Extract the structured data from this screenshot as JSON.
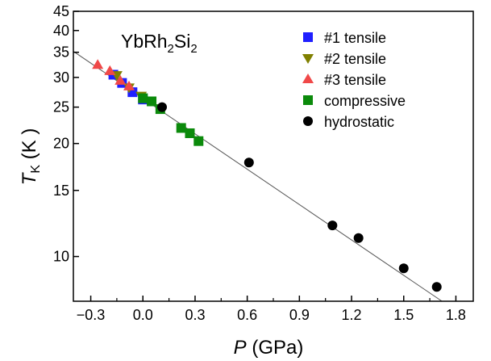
{
  "chart_data": {
    "type": "scatter",
    "annotation": {
      "base": "YbRh",
      "sub1": "2",
      "mid": "Si",
      "sub2": "2"
    },
    "xlabel": {
      "var": "P",
      "unit": " (GPa)"
    },
    "ylabel": {
      "var": "T",
      "sub": "K",
      "unit": " (K )"
    },
    "xlim": [
      -0.4,
      1.9
    ],
    "ylim": [
      7.6,
      45
    ],
    "yscale": "log",
    "grid": false,
    "legend_position": "top-right",
    "x_ticks": [
      {
        "value": -0.3,
        "label": "−0.3"
      },
      {
        "value": 0.0,
        "label": "0.0"
      },
      {
        "value": 0.3,
        "label": "0.3"
      },
      {
        "value": 0.6,
        "label": "0.6"
      },
      {
        "value": 0.9,
        "label": "0.9"
      },
      {
        "value": 1.2,
        "label": "1.2"
      },
      {
        "value": 1.5,
        "label": "1.5"
      },
      {
        "value": 1.8,
        "label": "1.8"
      }
    ],
    "y_ticks": [
      {
        "value": 10,
        "label": "10"
      },
      {
        "value": 15,
        "label": "15"
      },
      {
        "value": 20,
        "label": "20"
      },
      {
        "value": 25,
        "label": "25"
      },
      {
        "value": 30,
        "label": "30"
      },
      {
        "value": 35,
        "label": "35"
      },
      {
        "value": 40,
        "label": "40"
      },
      {
        "value": 45,
        "label": "45"
      }
    ],
    "fit_line": {
      "color": "#555555",
      "points": [
        [
          -0.4,
          35.2
        ],
        [
          1.72,
          7.6
        ]
      ]
    },
    "series": [
      {
        "name": "#1 tensile",
        "marker": "square",
        "color": "#1f1fff",
        "points": [
          [
            -0.17,
            30.5
          ],
          [
            -0.12,
            29.0
          ],
          [
            -0.06,
            27.4
          ],
          [
            0.0,
            26.2
          ]
        ]
      },
      {
        "name": "#2 tensile",
        "marker": "triangle-down",
        "color": "#808000",
        "points": [
          [
            -0.15,
            30.4
          ],
          [
            -0.08,
            28.2
          ],
          [
            -0.01,
            26.8
          ]
        ]
      },
      {
        "name": "#3 tensile",
        "marker": "triangle-up",
        "color": "#f04848",
        "points": [
          [
            -0.26,
            32.4
          ],
          [
            -0.19,
            31.2
          ],
          [
            -0.13,
            29.4
          ],
          [
            -0.08,
            28.4
          ]
        ]
      },
      {
        "name": "compressive",
        "marker": "square",
        "color": "#0b8a0b",
        "points": [
          [
            0.0,
            26.4
          ],
          [
            0.05,
            25.9
          ],
          [
            0.1,
            24.7
          ],
          [
            0.22,
            22.0
          ],
          [
            0.27,
            21.3
          ],
          [
            0.32,
            20.3
          ]
        ]
      },
      {
        "name": "hydrostatic",
        "marker": "circle",
        "color": "#000000",
        "points": [
          [
            0.11,
            25.0
          ],
          [
            0.61,
            17.8
          ],
          [
            1.09,
            12.1
          ],
          [
            1.24,
            11.2
          ],
          [
            1.5,
            9.3
          ],
          [
            1.69,
            8.3
          ]
        ]
      }
    ]
  }
}
